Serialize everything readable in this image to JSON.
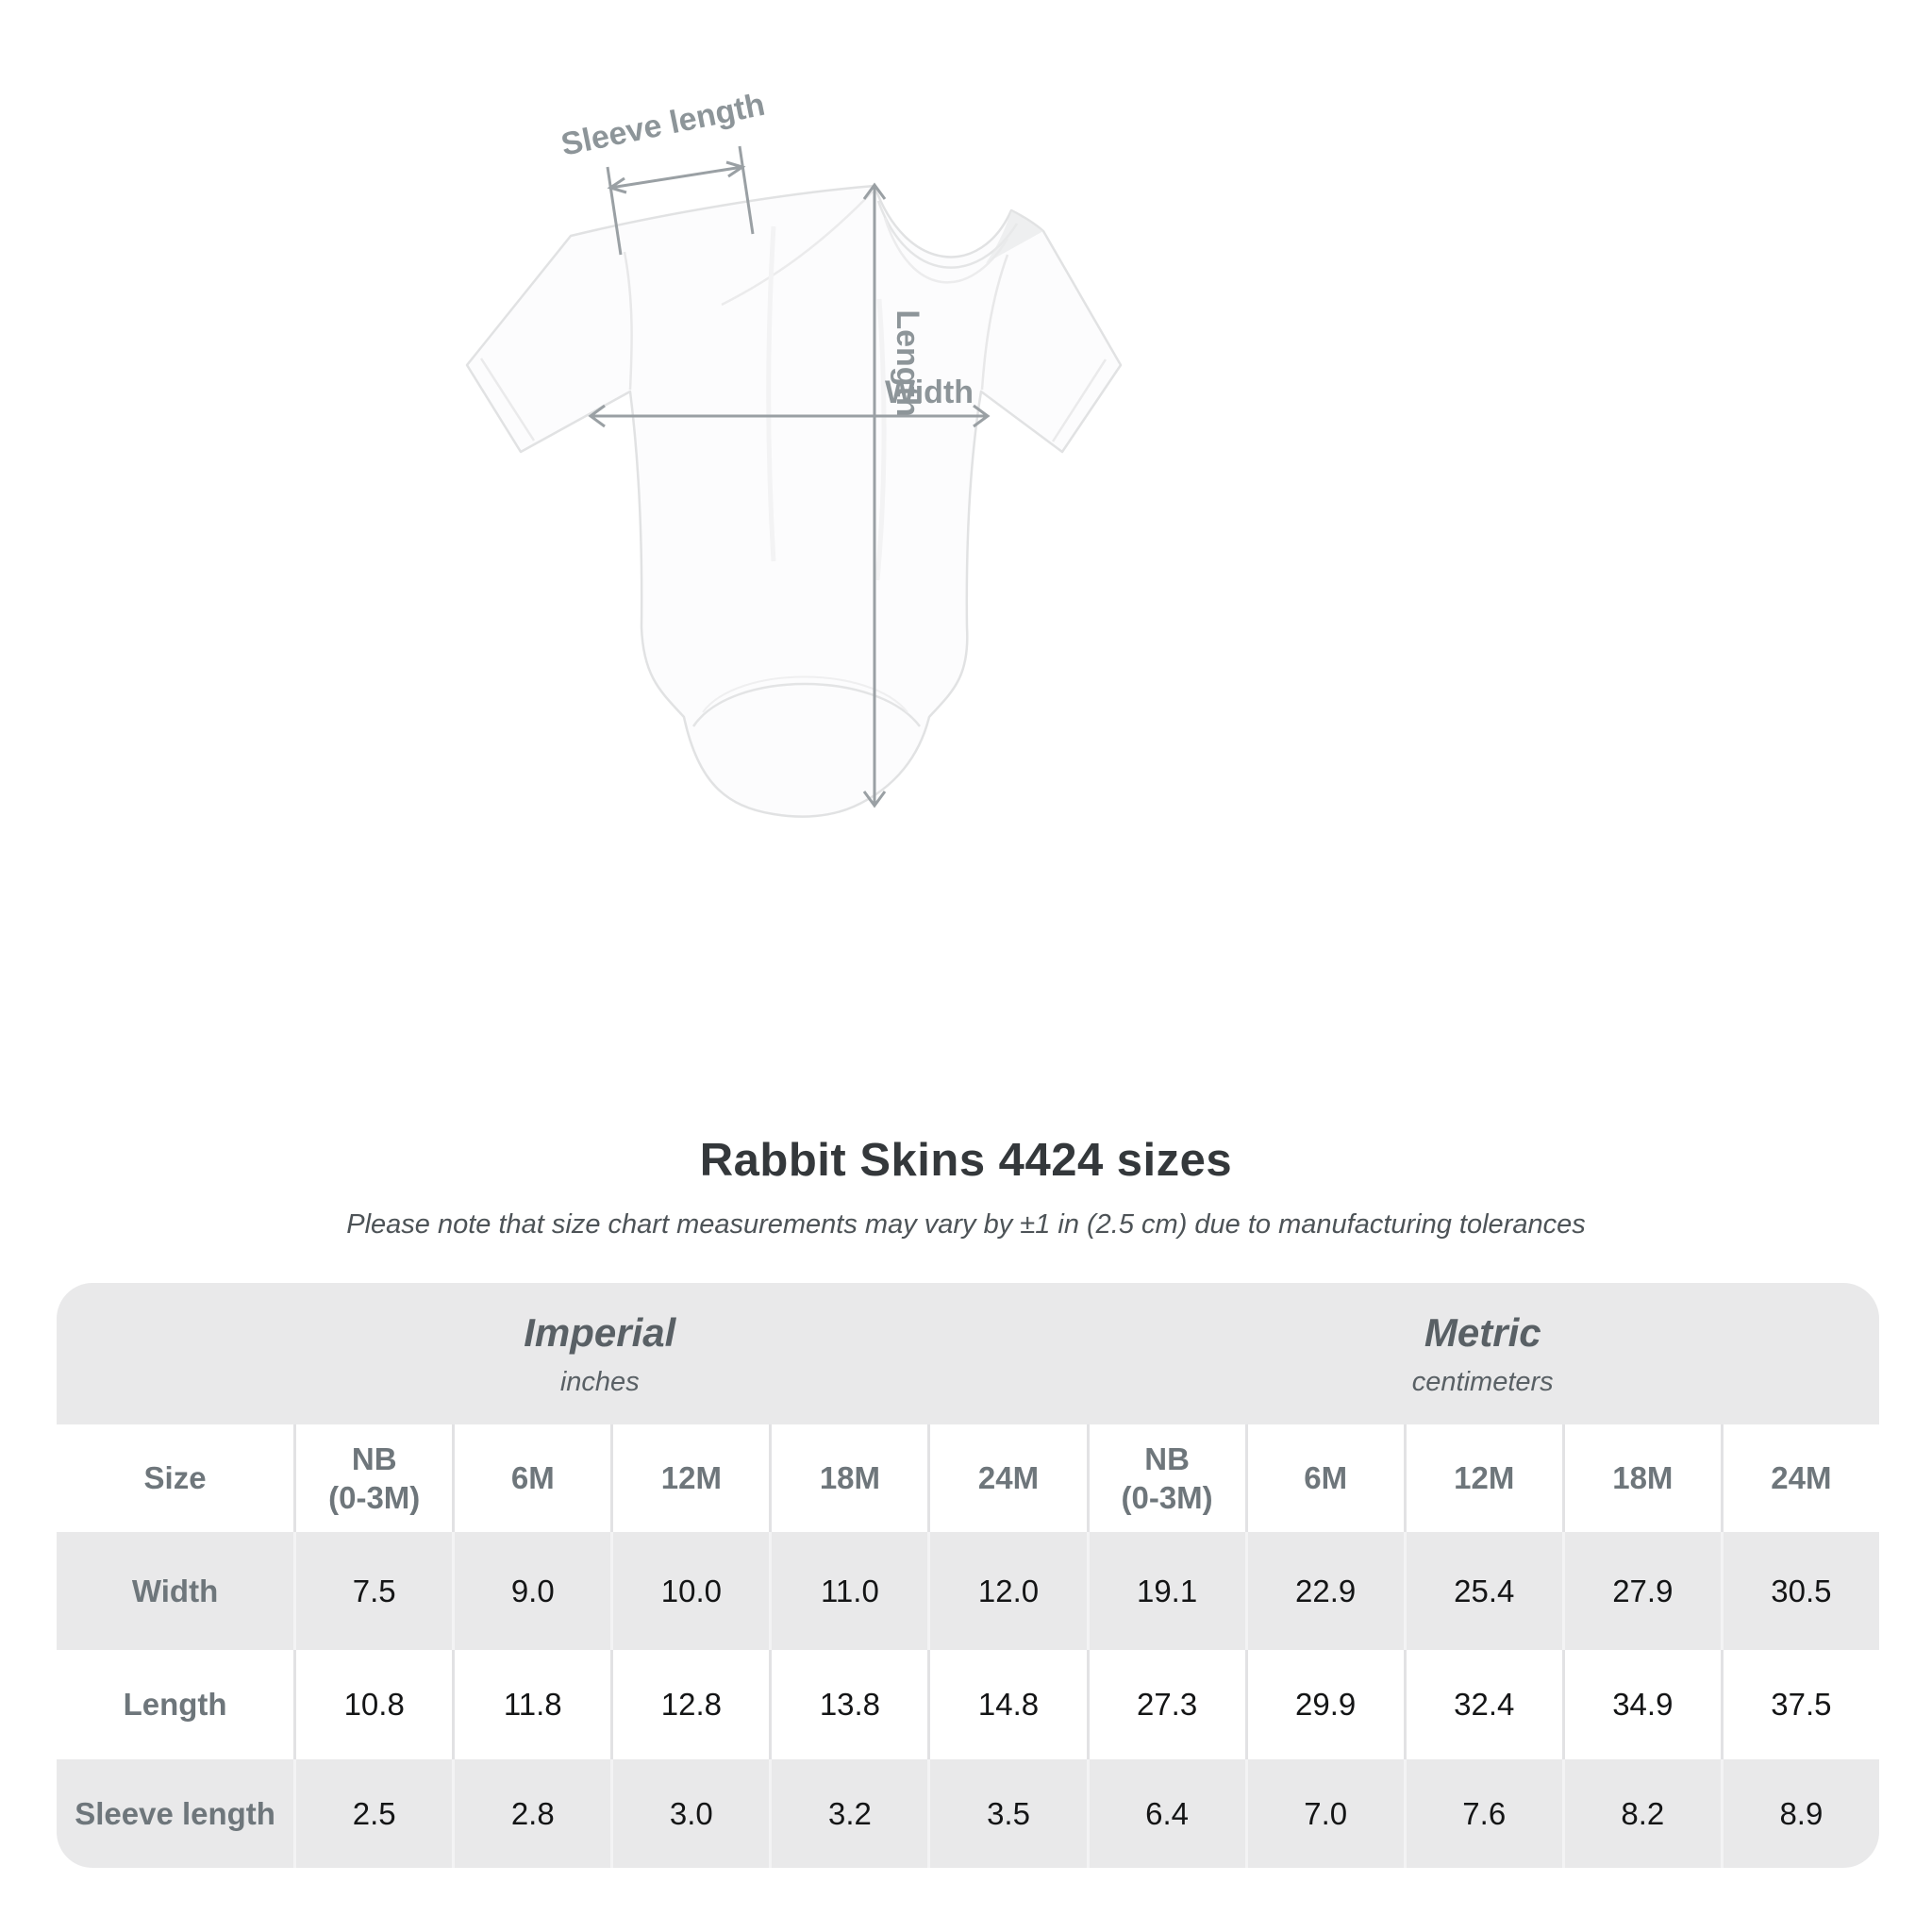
{
  "illustration": {
    "sleeve_label": "Sleeve length",
    "length_label": "Length",
    "width_label": "Width"
  },
  "title": "Rabbit Skins 4424 sizes",
  "note": "Please note that size chart measurements may vary by ±1 in (2.5 cm) due to manufacturing tolerances",
  "table": {
    "unit_groups": [
      {
        "name": "Imperial",
        "unit": "inches"
      },
      {
        "name": "Metric",
        "unit": "centimeters"
      }
    ],
    "size_label": "Size",
    "columns": [
      "NB\n(0-3M)",
      "6M",
      "12M",
      "18M",
      "24M",
      "NB\n(0-3M)",
      "6M",
      "12M",
      "18M",
      "24M"
    ],
    "rows": [
      {
        "label": "Width",
        "values": [
          "7.5",
          "9.0",
          "10.0",
          "11.0",
          "12.0",
          "19.1",
          "22.9",
          "25.4",
          "27.9",
          "30.5"
        ]
      },
      {
        "label": "Length",
        "values": [
          "10.8",
          "11.8",
          "12.8",
          "13.8",
          "14.8",
          "27.3",
          "29.9",
          "32.4",
          "34.9",
          "37.5"
        ]
      },
      {
        "label": "Sleeve length",
        "values": [
          "2.5",
          "2.8",
          "3.0",
          "3.2",
          "3.5",
          "6.4",
          "7.0",
          "7.6",
          "8.2",
          "8.9"
        ]
      }
    ]
  },
  "colors": {
    "annotation_line": "#9aa0a4",
    "annotation_text": "#8d9599",
    "table_row_gray": "#e9e9ea",
    "heading_text": "#34383b",
    "label_gray": "#6e767b",
    "value_dark": "#141516"
  },
  "chart_data": {
    "type": "table",
    "title": "Rabbit Skins 4424 sizes",
    "note": "Size chart measurements may vary by ±1 in (2.5 cm) due to manufacturing tolerances",
    "column_groups": [
      {
        "group": "Imperial (inches)",
        "sizes": [
          "NB (0-3M)",
          "6M",
          "12M",
          "18M",
          "24M"
        ]
      },
      {
        "group": "Metric (centimeters)",
        "sizes": [
          "NB (0-3M)",
          "6M",
          "12M",
          "18M",
          "24M"
        ]
      }
    ],
    "measurements": {
      "Width": {
        "imperial_in": [
          7.5,
          9.0,
          10.0,
          11.0,
          12.0
        ],
        "metric_cm": [
          19.1,
          22.9,
          25.4,
          27.9,
          30.5
        ]
      },
      "Length": {
        "imperial_in": [
          10.8,
          11.8,
          12.8,
          13.8,
          14.8
        ],
        "metric_cm": [
          27.3,
          29.9,
          32.4,
          34.9,
          37.5
        ]
      },
      "Sleeve length": {
        "imperial_in": [
          2.5,
          2.8,
          3.0,
          3.2,
          3.5
        ],
        "metric_cm": [
          6.4,
          7.0,
          7.6,
          8.2,
          8.9
        ]
      }
    }
  }
}
